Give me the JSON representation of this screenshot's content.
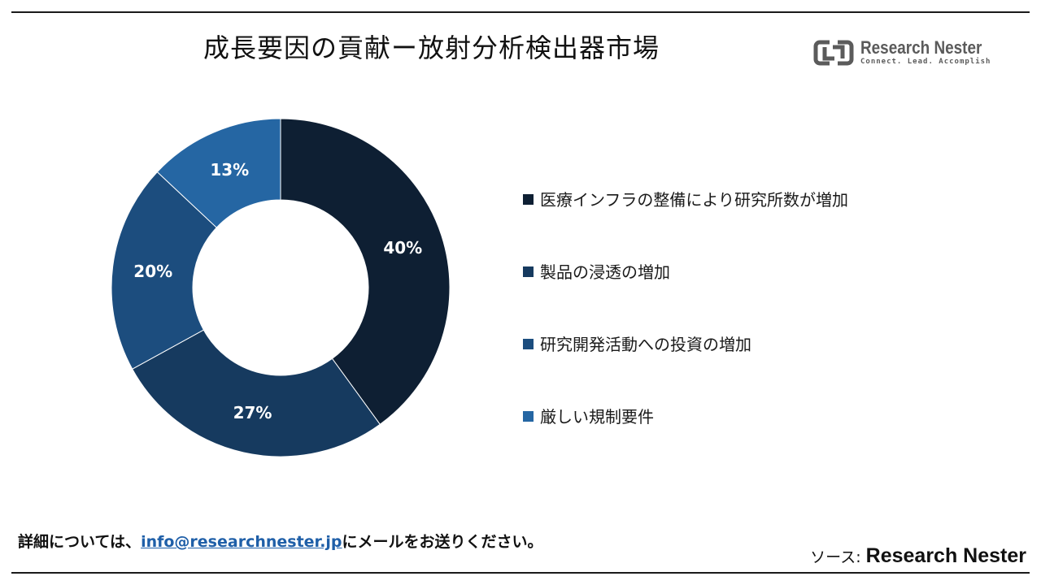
{
  "title": "成長要因の貢献ー放射分析検出器市場",
  "logo": {
    "name": "Research Nester",
    "tagline": "Connect. Lead. Accomplish",
    "icon": "research-nester-logo-mark"
  },
  "chart_data": {
    "type": "pie",
    "donut": true,
    "title": "成長要因の貢献ー放射分析検出器市場",
    "legend_position": "right",
    "series": [
      {
        "name": "医療インフラの整備により研究所数が増加",
        "value": 40,
        "label": "40%",
        "color": "#0e1f33"
      },
      {
        "name": "製品の浸透の増加",
        "value": 27,
        "label": "27%",
        "color": "#163a5f"
      },
      {
        "name": "研究開発活動への投資の増加",
        "value": 20,
        "label": "20%",
        "color": "#1c4d7e"
      },
      {
        "name": "厳しい規制要件",
        "value": 13,
        "label": "13%",
        "color": "#2566a3"
      }
    ]
  },
  "footer": {
    "prefix": "詳細については、",
    "email": "info@researchnester.jp",
    "suffix": "にメールをお送りください。"
  },
  "source": {
    "label": "ソース: ",
    "name": "Research Nester"
  }
}
